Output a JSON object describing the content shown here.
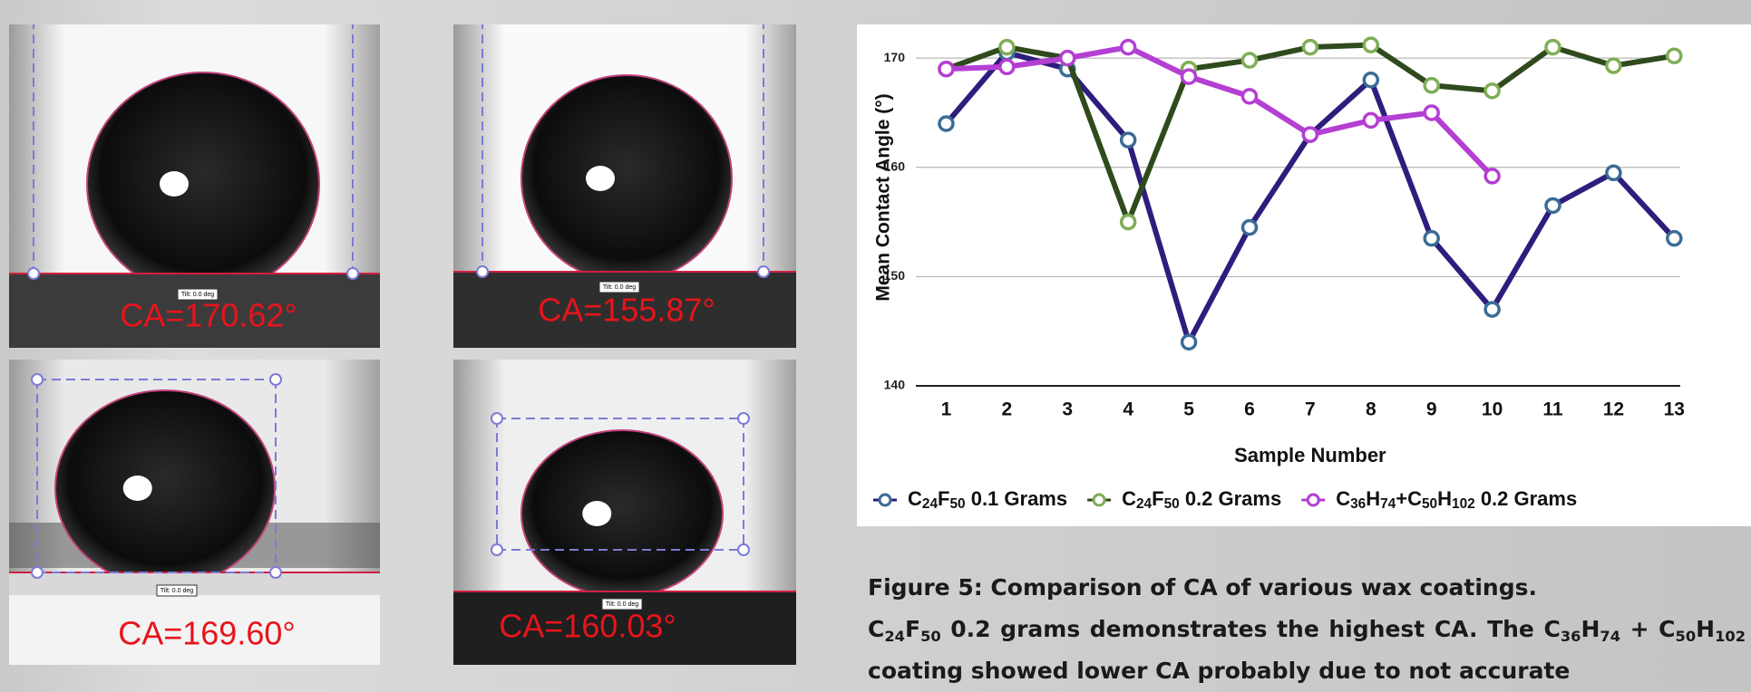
{
  "images": [
    {
      "label": "CA=170.62°",
      "tilt": "Tilt: 0.0 deg"
    },
    {
      "label": "CA=155.87°",
      "tilt": "Tilt: 0.0 deg"
    },
    {
      "label": "CA=169.60°",
      "tilt": "Tilt: 0.0 deg"
    },
    {
      "label": "CA=160.03°",
      "tilt": "Tilt: 0.0 deg"
    }
  ],
  "chart_data": {
    "type": "line",
    "x_label": "Sample Number",
    "y_label": "Mean Contact Angle (°)",
    "x": [
      1,
      2,
      3,
      4,
      5,
      6,
      7,
      8,
      9,
      10,
      11,
      12,
      13
    ],
    "xlim": [
      0.5,
      13.1
    ],
    "xticks": [
      1,
      2,
      3,
      4,
      5,
      6,
      7,
      8,
      9,
      10,
      11,
      12,
      13
    ],
    "ylim": [
      140,
      172
    ],
    "yticks": [
      140,
      150,
      160,
      170
    ],
    "grid": true,
    "legend": "bottom",
    "series": [
      {
        "name": "C24F50 0.1 Grams",
        "color": "#2e1d7d",
        "marker_color": "#3b6c96",
        "values": [
          164,
          170.5,
          169,
          162.5,
          144,
          154.5,
          163,
          168,
          153.5,
          147,
          156.5,
          159.5,
          153.5
        ]
      },
      {
        "name": "C24F50 0.2 Grams",
        "color": "#2f4a1c",
        "marker_color": "#7fae57",
        "values": [
          169,
          171,
          170,
          155,
          169,
          169.8,
          171,
          171.2,
          167.5,
          167,
          171,
          169.3,
          170.2
        ]
      },
      {
        "name": "C36H74+C50H102 0.2 Grams",
        "color": "#b43fd3",
        "marker_color": "#b43fd3",
        "values": [
          169,
          169.2,
          170,
          171,
          168.3,
          166.5,
          163,
          164.3,
          165,
          159.2,
          null,
          null,
          null
        ]
      }
    ]
  },
  "caption": {
    "title": "Figure 5: Comparison of CA of various wax coatings.",
    "body": "C24F50 0.2 grams demonstrates the highest CA. The C36H74 + C50H102 coating showed lower CA probably due to not accurate"
  }
}
